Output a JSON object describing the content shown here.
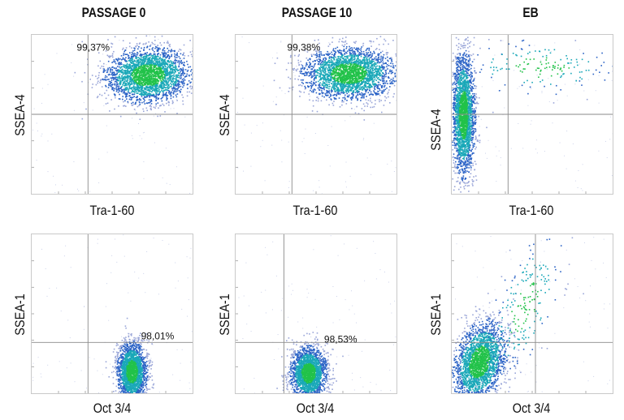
{
  "chart_data": [
    {
      "type": "scatter",
      "column_title": "PASSAGE 0",
      "xlabel": "Tra-1-60",
      "ylabel": "SSEA-4",
      "gate_percent": "99,37%",
      "quadrant_gate": {
        "x": 0.35,
        "y": 0.5
      },
      "populations": [
        {
          "cx": 0.72,
          "cy": 0.75,
          "sx": 0.13,
          "sy": 0.085,
          "n": 2600,
          "tilt": 0.05
        }
      ]
    },
    {
      "type": "scatter",
      "column_title": "PASSAGE 10",
      "xlabel": "Tra-1-60",
      "ylabel": "SSEA-4",
      "gate_percent": "99,38%",
      "quadrant_gate": {
        "x": 0.35,
        "y": 0.5
      },
      "populations": [
        {
          "cx": 0.7,
          "cy": 0.76,
          "sx": 0.14,
          "sy": 0.08,
          "n": 2600,
          "tilt": 0.04
        }
      ]
    },
    {
      "type": "scatter",
      "column_title": "EB",
      "xlabel": "Tra-1-60",
      "ylabel": "SSEA-4",
      "gate_percent": "",
      "quadrant_gate": {
        "x": 0.35,
        "y": 0.5
      },
      "populations": [
        {
          "cx": 0.07,
          "cy": 0.5,
          "sx": 0.035,
          "sy": 0.19,
          "n": 2400,
          "tilt": 0
        },
        {
          "cx": 0.55,
          "cy": 0.8,
          "sx": 0.22,
          "sy": 0.08,
          "n": 160,
          "tilt": 0
        }
      ]
    },
    {
      "type": "scatter",
      "column_title": "",
      "xlabel": "Oct 3/4",
      "ylabel": "SSEA-1",
      "gate_percent": "98,01%",
      "quadrant_gate": {
        "x": 0.35,
        "y": 0.32
      },
      "populations": [
        {
          "cx": 0.62,
          "cy": 0.14,
          "sx": 0.045,
          "sy": 0.09,
          "n": 2200,
          "tilt": 0
        }
      ]
    },
    {
      "type": "scatter",
      "column_title": "",
      "xlabel": "Oct 3/4",
      "ylabel": "SSEA-1",
      "gate_percent": "98,53%",
      "quadrant_gate": {
        "x": 0.3,
        "y": 0.32
      },
      "populations": [
        {
          "cx": 0.45,
          "cy": 0.13,
          "sx": 0.055,
          "sy": 0.08,
          "n": 2200,
          "tilt": 0
        }
      ]
    },
    {
      "type": "scatter",
      "column_title": "",
      "xlabel": "Oct 3/4",
      "ylabel": "SSEA-1",
      "gate_percent": "",
      "quadrant_gate": {
        "x": 0.52,
        "y": 0.32
      },
      "populations": [
        {
          "cx": 0.17,
          "cy": 0.2,
          "sx": 0.08,
          "sy": 0.12,
          "n": 2400,
          "tilt": 0.3
        },
        {
          "cx": 0.45,
          "cy": 0.55,
          "sx": 0.12,
          "sy": 0.17,
          "n": 220,
          "tilt": 0.8
        }
      ]
    }
  ],
  "colors": {
    "core": "#22c24a",
    "mid": "#1aa8b8",
    "outer": "#2b63c6",
    "sparse": "#9aa6d8",
    "gate": "#8a8a8a"
  }
}
